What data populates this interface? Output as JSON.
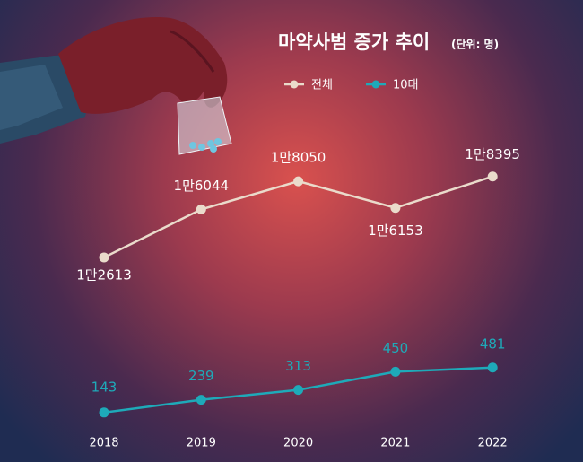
{
  "chart_data": {
    "type": "line",
    "title": "마약사범 증가 추이",
    "subtitle": "(단위: 명)",
    "categories": [
      "2018",
      "2019",
      "2020",
      "2021",
      "2022"
    ],
    "series": [
      {
        "name": "전체",
        "color": "#eadbcb",
        "values": [
          12613,
          16044,
          18050,
          16153,
          18395
        ],
        "value_labels": [
          "1만2613",
          "1만6044",
          "1만8050",
          "1만6153",
          "1만8395"
        ]
      },
      {
        "name": "10대",
        "color": "#1eaab9",
        "axis": "y2",
        "values": [
          143,
          239,
          313,
          450,
          481
        ]
      }
    ],
    "ylim": [
      -2000,
      31000
    ],
    "y2lim": [
      -230,
      3250
    ]
  }
}
